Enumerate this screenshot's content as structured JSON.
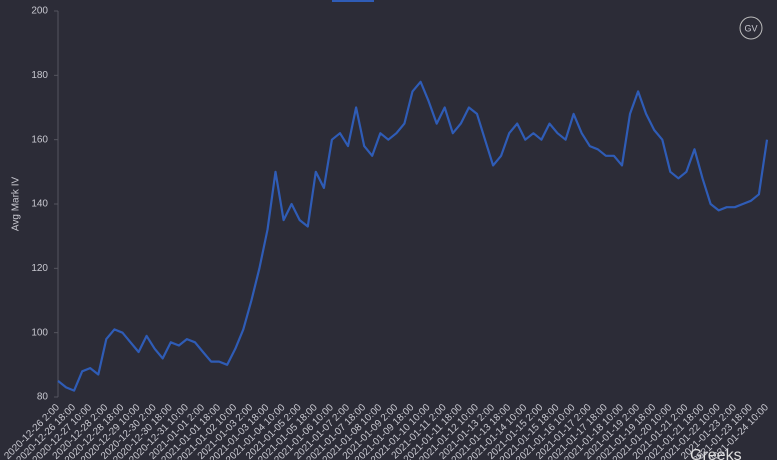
{
  "chart_data": {
    "type": "line",
    "y_label": "Avg Mark IV",
    "watermarks": [
      "GV",
      "Greeks"
    ],
    "categories": [
      "2020-12-26 2:00",
      null,
      "2020-12-26 18:00",
      null,
      "2020-12-27 10:00",
      null,
      "2020-12-28 2:00",
      null,
      "2020-12-28 18:00",
      null,
      "2020-12-29 10:00",
      null,
      "2020-12-30 2:00",
      null,
      "2020-12-30 18:00",
      null,
      "2020-12-31 10:00",
      null,
      "2021-01-01 2:00",
      null,
      "2021-01-01 18:00",
      null,
      "2021-01-02 10:00",
      null,
      "2021-01-03 2:00",
      null,
      "2021-01-03 18:00",
      null,
      "2021-01-04 10:00",
      null,
      "2021-01-05 2:00",
      null,
      "2021-01-05 18:00",
      null,
      "2021-01-06 10:00",
      null,
      "2021-01-07 2:00",
      null,
      "2021-01-07 18:00",
      null,
      "2021-01-08 10:00",
      null,
      "2021-01-09 2:00",
      null,
      "2021-01-09 18:00",
      null,
      "2021-01-10 10:00",
      null,
      "2021-01-11 2:00",
      null,
      "2021-01-11 18:00",
      null,
      "2021-01-12 10:00",
      null,
      "2021-01-13 2:00",
      null,
      "2021-01-13 18:00",
      null,
      "2021-01-14 10:00",
      null,
      "2021-01-15 2:00",
      null,
      "2021-01-15 18:00",
      null,
      "2021-01-16 10:00",
      null,
      "2021-01-17 2:00",
      null,
      "2021-01-17 18:00",
      null,
      "2021-01-18 10:00",
      null,
      "2021-01-19 2:00",
      null,
      "2021-01-19 18:00",
      null,
      "2021-01-20 10:00",
      null,
      "2021-01-21 2:00",
      null,
      "2021-01-21 18:00",
      null,
      "2021-01-22 10:00",
      null,
      "2021-01-23 2:00",
      null,
      "2021-01-23 18:00",
      null,
      "2021-01-24 10:00"
    ],
    "values": [
      85,
      83,
      82,
      88,
      89,
      87,
      98,
      101,
      100,
      97,
      94,
      99,
      95,
      92,
      97,
      96,
      98,
      97,
      94,
      91,
      91,
      90,
      95,
      101,
      110,
      120,
      132,
      150,
      135,
      140,
      135,
      133,
      150,
      145,
      160,
      162,
      158,
      170,
      158,
      155,
      162,
      160,
      162,
      165,
      175,
      178,
      172,
      165,
      170,
      162,
      165,
      170,
      168,
      160,
      152,
      155,
      162,
      165,
      160,
      162,
      160,
      165,
      162,
      160,
      168,
      162,
      158,
      157,
      155,
      155,
      152,
      168,
      175,
      168,
      163,
      160,
      150,
      148,
      150,
      157,
      148,
      140,
      138,
      139,
      139,
      140,
      141,
      143,
      160
    ],
    "color": "#2f5cb6",
    "ylim": [
      80,
      200
    ],
    "yticks": [
      80,
      100,
      120,
      140,
      160,
      180,
      200
    ]
  }
}
